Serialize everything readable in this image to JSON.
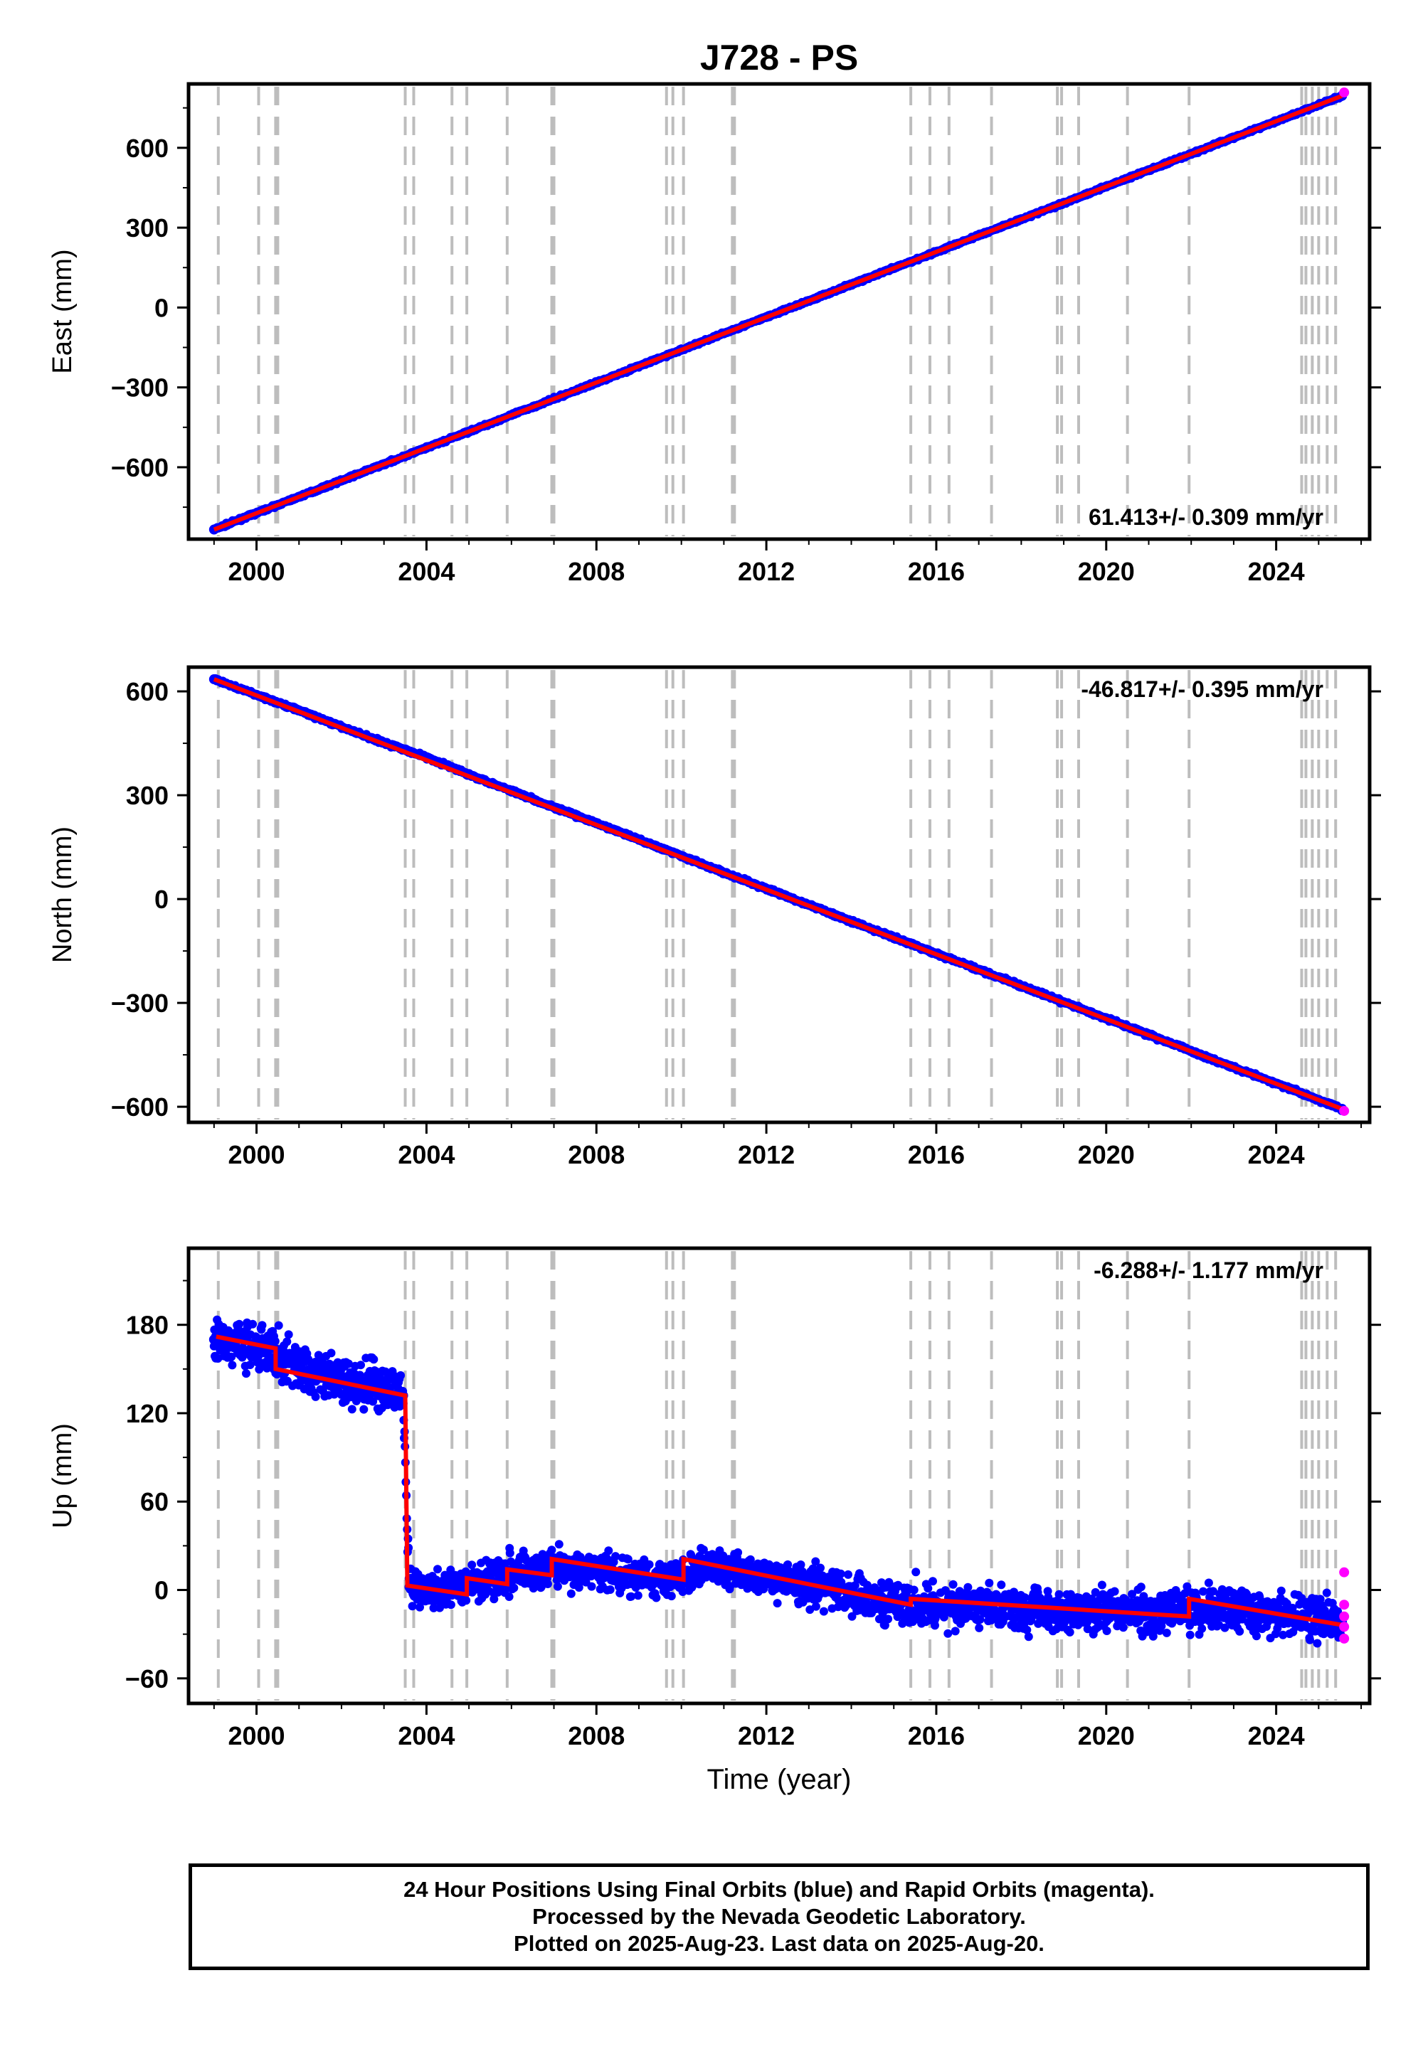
{
  "title": "J728 - PS",
  "colors": {
    "final_points": "#0000ff",
    "rapid_points": "#ff00ff",
    "model_line": "#ff0000",
    "step_lines": "#bdbdbd",
    "frame": "#000000"
  },
  "step_epochs": [
    1999.1,
    2000.05,
    2000.45,
    2000.5,
    2003.5,
    2003.7,
    2004.6,
    2004.95,
    2005.9,
    2006.95,
    2007.0,
    2009.65,
    2009.8,
    2010.05,
    2011.2,
    2011.25,
    2015.4,
    2015.85,
    2016.3,
    2017.3,
    2018.85,
    2018.95,
    2019.35,
    2020.5,
    2021.95,
    2024.6,
    2024.7,
    2024.85,
    2025.0,
    2025.2,
    2025.4
  ],
  "footer": {
    "line1": "24 Hour Positions Using Final Orbits (blue) and Rapid Orbits (magenta).",
    "line2": "Processed by the Nevada Geodetic Laboratory.",
    "line3": "Plotted on 2025-Aug-23. Last data on 2025-Aug-20."
  },
  "chart_data": [
    {
      "type": "scatter",
      "name": "East",
      "ylabel": "East (mm)",
      "xlabel": "",
      "xlim": [
        1998.4,
        2026.2
      ],
      "ylim": [
        -870,
        840
      ],
      "yticks": [
        -600,
        -300,
        0,
        300,
        600
      ],
      "xticks": [
        2000,
        2004,
        2008,
        2012,
        2016,
        2020,
        2024
      ],
      "grid": false,
      "velocity_label": "61.413+/- 0.309 mm/yr",
      "velocity_position": "bottom-right",
      "series": [
        {
          "name": "final",
          "x": [
            1999.0,
            2000.0,
            2001.0,
            2002.0,
            2003.0,
            2004.0,
            2005.0,
            2006.0,
            2007.0,
            2008.0,
            2009.0,
            2010.0,
            2011.0,
            2012.0,
            2013.0,
            2014.0,
            2015.0,
            2016.0,
            2017.0,
            2018.0,
            2019.0,
            2020.0,
            2021.0,
            2022.0,
            2023.0,
            2024.0,
            2025.0,
            2025.55
          ],
          "y": [
            -834,
            -772,
            -711,
            -650,
            -588,
            -527,
            -466,
            -404,
            -343,
            -282,
            -220,
            -159,
            -97,
            -36,
            25,
            87,
            148,
            209,
            271,
            332,
            393,
            455,
            516,
            577,
            639,
            700,
            761,
            795
          ]
        },
        {
          "name": "rapid",
          "x": [
            2025.6
          ],
          "y": [
            808
          ]
        }
      ]
    },
    {
      "type": "scatter",
      "name": "North",
      "ylabel": "North (mm)",
      "xlabel": "",
      "xlim": [
        1998.4,
        2026.2
      ],
      "ylim": [
        -645,
        670
      ],
      "yticks": [
        -600,
        -300,
        0,
        300,
        600
      ],
      "xticks": [
        2000,
        2004,
        2008,
        2012,
        2016,
        2020,
        2024
      ],
      "grid": false,
      "velocity_label": "-46.817+/- 0.395 mm/yr",
      "velocity_position": "top-right",
      "series": [
        {
          "name": "final",
          "x": [
            1999.0,
            2000.0,
            2001.0,
            2002.0,
            2003.0,
            2004.0,
            2005.0,
            2006.0,
            2007.0,
            2008.0,
            2009.0,
            2010.0,
            2011.0,
            2012.0,
            2013.0,
            2014.0,
            2015.0,
            2016.0,
            2017.0,
            2018.0,
            2019.0,
            2020.0,
            2021.0,
            2022.0,
            2023.0,
            2024.0,
            2025.0,
            2025.55
          ],
          "y": [
            635,
            590,
            545,
            497,
            452,
            410,
            360,
            313,
            265,
            219,
            172,
            125,
            76,
            30,
            -17,
            -64,
            -111,
            -158,
            -204,
            -251,
            -298,
            -345,
            -392,
            -439,
            -486,
            -533,
            -580,
            -606
          ]
        },
        {
          "name": "rapid",
          "x": [
            2025.6
          ],
          "y": [
            -612
          ]
        }
      ]
    },
    {
      "type": "scatter",
      "name": "Up",
      "ylabel": "Up (mm)",
      "xlabel": "Time (year)",
      "xlim": [
        1998.4,
        2026.2
      ],
      "ylim": [
        -77,
        232
      ],
      "yticks": [
        -60,
        0,
        60,
        120,
        180
      ],
      "xticks": [
        2000,
        2004,
        2008,
        2012,
        2016,
        2020,
        2024
      ],
      "grid": false,
      "velocity_label": "-6.288+/- 1.177 mm/yr",
      "velocity_position": "top-right",
      "series": [
        {
          "name": "final",
          "x": [
            1999.0,
            1999.5,
            2000.0,
            2000.5,
            2001.0,
            2001.5,
            2002.0,
            2002.5,
            2003.0,
            2003.45,
            2003.6,
            2004.5,
            2005.0,
            2006.0,
            2007.0,
            2008.0,
            2009.0,
            2010.0,
            2010.5,
            2011.0,
            2012.0,
            2013.0,
            2014.0,
            2015.0,
            2016.0,
            2017.0,
            2018.0,
            2019.0,
            2020.0,
            2021.0,
            2022.0,
            2023.0,
            2024.0,
            2025.0,
            2025.55
          ],
          "y": [
            170,
            168,
            165,
            160,
            150,
            146,
            142,
            140,
            137,
            132,
            2,
            -2,
            6,
            12,
            16,
            12,
            9,
            8,
            17,
            14,
            9,
            3,
            -3,
            -8,
            -11,
            -11,
            -13,
            -14,
            -13,
            -16,
            -11,
            -13,
            -17,
            -19,
            -22
          ]
        },
        {
          "name": "rapid",
          "x": [
            2025.6,
            2025.6,
            2025.6,
            2025.6,
            2025.6
          ],
          "y": [
            12,
            -10,
            -18,
            -25,
            -33
          ]
        }
      ],
      "model_steps": [
        {
          "x0": 1999.05,
          "x1": 2000.45,
          "y": [
            172,
            164
          ]
        },
        {
          "x0": 2000.45,
          "x1": 2003.5,
          "y": [
            150,
            132
          ]
        },
        {
          "x0": 2003.55,
          "x1": 2004.95,
          "y": [
            3,
            -3
          ]
        },
        {
          "x0": 2004.95,
          "x1": 2005.9,
          "y": [
            8,
            4
          ]
        },
        {
          "x0": 2005.9,
          "x1": 2006.95,
          "y": [
            14,
            10
          ]
        },
        {
          "x0": 2006.95,
          "x1": 2010.05,
          "y": [
            21,
            7
          ]
        },
        {
          "x0": 2010.05,
          "x1": 2015.4,
          "y": [
            21,
            -10
          ]
        },
        {
          "x0": 2015.4,
          "x1": 2021.95,
          "y": [
            -6,
            -18
          ]
        },
        {
          "x0": 2021.95,
          "x1": 2025.6,
          "y": [
            -6,
            -24
          ]
        }
      ]
    }
  ]
}
